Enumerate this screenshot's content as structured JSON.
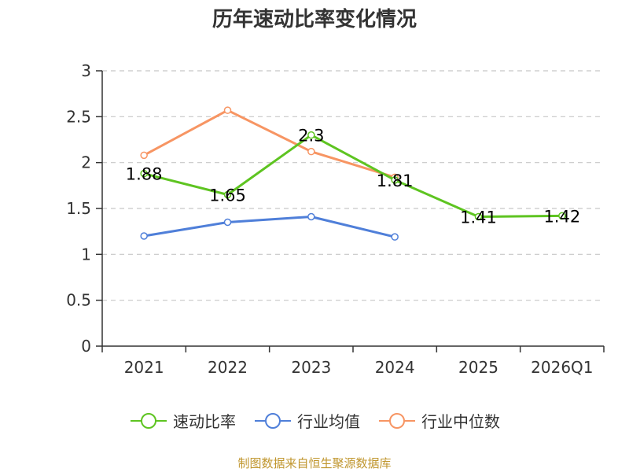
{
  "title": "历年速动比率变化情况",
  "source": "制图数据来自恒生聚源数据库",
  "colors": {
    "quick_ratio": "#5ec421",
    "industry_avg": "#4f7fd9",
    "industry_median": "#f79563"
  },
  "chart_data": {
    "type": "line",
    "title": "历年速动比率变化情况",
    "categories": [
      "2021",
      "2022",
      "2023",
      "2024",
      "2025",
      "2026Q1"
    ],
    "ylim": [
      0,
      3
    ],
    "yticks": [
      "0",
      "0.5",
      "1",
      "1.5",
      "2",
      "2.5",
      "3"
    ],
    "grid": true,
    "legend_position": "bottom",
    "series": [
      {
        "name": "速动比率",
        "values": [
          1.88,
          1.65,
          2.3,
          1.81,
          1.41,
          1.42
        ],
        "labels": [
          "1.88",
          "1.65",
          "2.3",
          "1.81",
          "1.41",
          "1.42"
        ],
        "color": "#5ec421"
      },
      {
        "name": "行业均值",
        "values": [
          1.2,
          1.35,
          1.41,
          1.19,
          null,
          null
        ],
        "color": "#4f7fd9"
      },
      {
        "name": "行业中位数",
        "values": [
          2.08,
          2.57,
          2.12,
          1.84,
          null,
          null
        ],
        "color": "#f79563"
      }
    ]
  }
}
